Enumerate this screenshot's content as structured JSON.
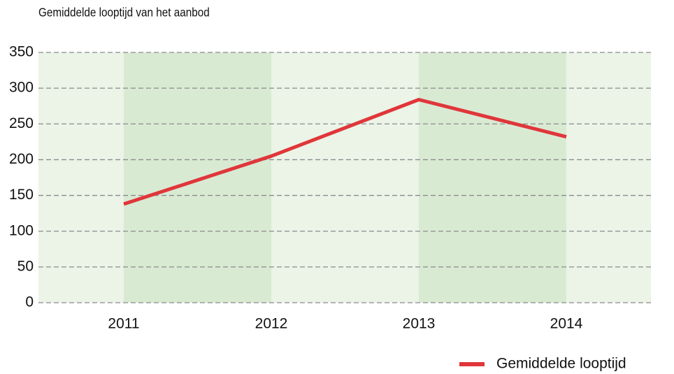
{
  "chart_data": {
    "type": "line",
    "title": "Gemiddelde looptijd van het aanbod",
    "categories": [
      "2011",
      "2012",
      "2013",
      "2014"
    ],
    "series": [
      {
        "name": "Gemiddelde looptijd",
        "color": "#e0363a",
        "values": [
          138,
          205,
          284,
          232
        ]
      }
    ],
    "ylim": [
      0,
      350
    ],
    "yticks": [
      0,
      50,
      100,
      150,
      200,
      250,
      300,
      350
    ],
    "grid": true,
    "legend": "bottom-right"
  }
}
